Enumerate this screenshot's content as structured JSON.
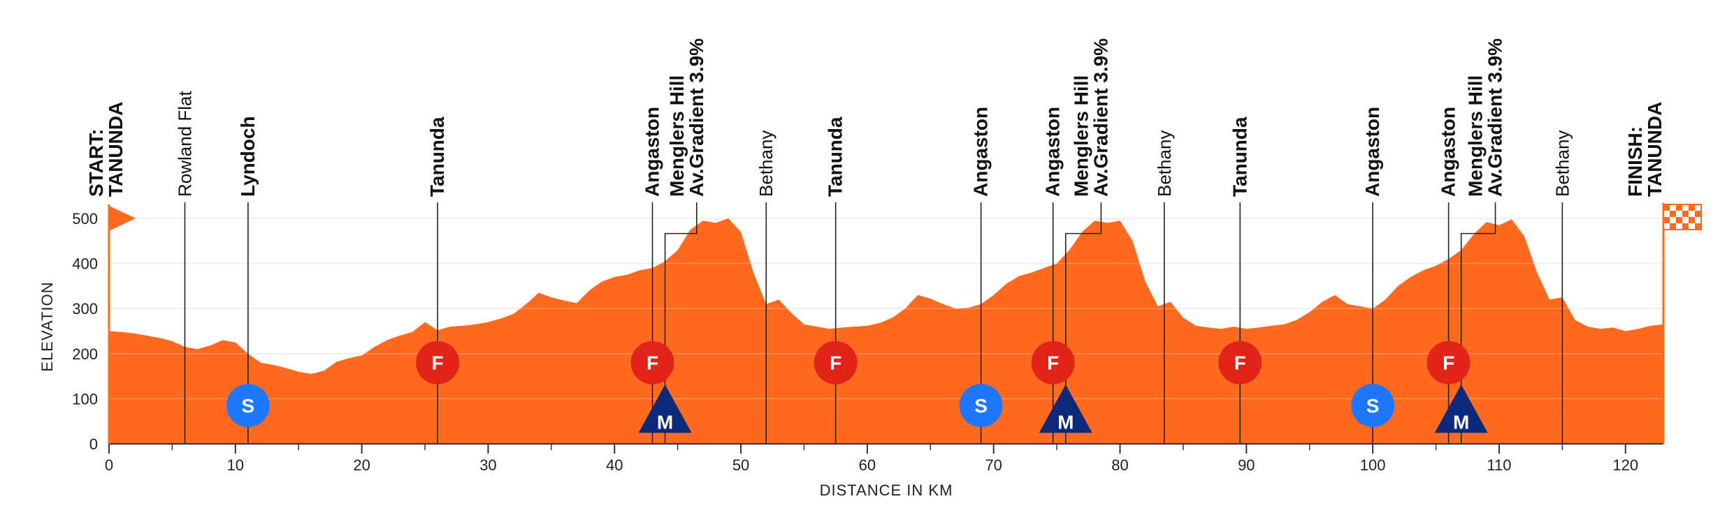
{
  "chart_data": {
    "type": "area",
    "xlabel": "DISTANCE IN KM",
    "ylabel": "ELEVATION",
    "xlim": [
      0,
      123
    ],
    "ylim": [
      0,
      520
    ],
    "xticks": [
      0,
      10,
      20,
      30,
      40,
      50,
      60,
      70,
      80,
      90,
      100,
      110,
      120
    ],
    "yticks": [
      0,
      100,
      200,
      300,
      400,
      500
    ],
    "grid": true,
    "colors": {
      "profile": "#ff6a1f",
      "sprint": "#1e78ff",
      "feed": "#e2231a",
      "mountain": "#0d2a7a"
    },
    "series": [
      {
        "x": [
          0,
          1,
          2,
          3,
          4,
          5,
          6,
          7,
          8,
          9,
          10,
          11,
          12,
          13,
          14,
          15,
          16,
          17,
          18,
          19,
          20,
          21,
          22,
          23,
          24,
          25,
          26,
          27,
          28,
          29,
          30,
          31,
          32,
          33,
          34,
          35,
          36,
          37,
          38,
          39,
          40,
          41,
          42,
          43,
          44,
          45,
          46,
          47,
          48,
          49,
          50,
          51,
          52,
          53,
          54,
          55,
          56,
          57,
          58,
          59,
          60,
          61,
          62,
          63,
          64,
          65,
          66,
          67,
          68,
          69,
          70,
          71,
          72,
          73,
          74,
          75,
          76,
          77,
          78,
          79,
          80,
          81,
          82,
          83,
          84,
          85,
          86,
          87,
          88,
          89,
          90,
          91,
          92,
          93,
          94,
          95,
          96,
          97,
          98,
          99,
          100,
          101,
          102,
          103,
          104,
          105,
          106,
          107,
          108,
          109,
          110,
          111,
          112,
          113,
          114,
          115,
          116,
          117,
          118,
          119,
          120,
          121,
          122,
          123
        ],
        "y": [
          250,
          248,
          245,
          240,
          235,
          228,
          215,
          210,
          218,
          230,
          225,
          200,
          180,
          175,
          168,
          160,
          155,
          162,
          182,
          190,
          196,
          215,
          230,
          240,
          248,
          270,
          252,
          260,
          262,
          265,
          270,
          278,
          288,
          310,
          335,
          325,
          318,
          312,
          340,
          360,
          370,
          375,
          385,
          390,
          405,
          430,
          475,
          495,
          490,
          500,
          470,
          380,
          310,
          320,
          290,
          265,
          260,
          255,
          258,
          260,
          262,
          268,
          280,
          300,
          330,
          322,
          310,
          300,
          302,
          310,
          330,
          355,
          372,
          380,
          390,
          400,
          430,
          470,
          495,
          490,
          495,
          450,
          360,
          305,
          315,
          280,
          262,
          258,
          255,
          260,
          255,
          258,
          262,
          265,
          275,
          292,
          315,
          330,
          310,
          305,
          300,
          320,
          350,
          370,
          385,
          395,
          410,
          430,
          465,
          492,
          485,
          498,
          460,
          380,
          320,
          325,
          275,
          260,
          255,
          258,
          250,
          255,
          262,
          265
        ]
      }
    ],
    "locations": [
      {
        "km": 0,
        "lines": [
          "START:",
          "TANUNDA"
        ],
        "bold": true,
        "line": false
      },
      {
        "km": 6,
        "lines": [
          "Rowland Flat"
        ],
        "bold": false,
        "line": true
      },
      {
        "km": 11,
        "lines": [
          "Lyndoch"
        ],
        "bold": true,
        "line": true
      },
      {
        "km": 26,
        "lines": [
          "Tanunda"
        ],
        "bold": true,
        "line": true
      },
      {
        "km": 43,
        "lines": [
          "Angaston"
        ],
        "bold": true,
        "line": true
      },
      {
        "km": 46.5,
        "lines": [
          "Menglers Hill",
          "Av.Gradient 3.9%"
        ],
        "bold": true,
        "line": true,
        "anchor_km": 44,
        "anchor_elev": 420
      },
      {
        "km": 52,
        "lines": [
          "Bethany"
        ],
        "bold": false,
        "line": true
      },
      {
        "km": 57.5,
        "lines": [
          "Tanunda"
        ],
        "bold": true,
        "line": true
      },
      {
        "km": 69,
        "lines": [
          "Angaston"
        ],
        "bold": true,
        "line": true
      },
      {
        "km": 74.7,
        "lines": [
          "Angaston"
        ],
        "bold": true,
        "line": true
      },
      {
        "km": 78.5,
        "lines": [
          "Menglers Hill",
          "Av.Gradient 3.9%"
        ],
        "bold": true,
        "line": true,
        "anchor_km": 75.7,
        "anchor_elev": 420
      },
      {
        "km": 83.5,
        "lines": [
          "Bethany"
        ],
        "bold": false,
        "line": true
      },
      {
        "km": 89.5,
        "lines": [
          "Tanunda"
        ],
        "bold": true,
        "line": true
      },
      {
        "km": 100,
        "lines": [
          "Angaston"
        ],
        "bold": true,
        "line": true
      },
      {
        "km": 106,
        "lines": [
          "Angaston"
        ],
        "bold": true,
        "line": true
      },
      {
        "km": 109.7,
        "lines": [
          "Menglers Hill",
          "Av.Gradient 3.9%"
        ],
        "bold": true,
        "line": true,
        "anchor_km": 107,
        "anchor_elev": 420
      },
      {
        "km": 115,
        "lines": [
          "Bethany"
        ],
        "bold": false,
        "line": true
      },
      {
        "km": 123,
        "lines": [
          "FINISH:",
          "TANUNDA"
        ],
        "bold": true,
        "line": false
      }
    ],
    "markers": [
      {
        "type": "sprint",
        "label": "S",
        "km": 11,
        "elev": 85
      },
      {
        "type": "sprint",
        "label": "S",
        "km": 69,
        "elev": 85
      },
      {
        "type": "sprint",
        "label": "S",
        "km": 100,
        "elev": 85
      },
      {
        "type": "feed",
        "label": "F",
        "km": 26,
        "elev": 180
      },
      {
        "type": "feed",
        "label": "F",
        "km": 43,
        "elev": 180
      },
      {
        "type": "feed",
        "label": "F",
        "km": 57.5,
        "elev": 180
      },
      {
        "type": "feed",
        "label": "F",
        "km": 74.7,
        "elev": 180
      },
      {
        "type": "feed",
        "label": "F",
        "km": 89.5,
        "elev": 180
      },
      {
        "type": "feed",
        "label": "F",
        "km": 106,
        "elev": 180
      },
      {
        "type": "mountain",
        "label": "M",
        "km": 44,
        "elev": 55
      },
      {
        "type": "mountain",
        "label": "M",
        "km": 75.7,
        "elev": 55
      },
      {
        "type": "mountain",
        "label": "M",
        "km": 107,
        "elev": 55
      }
    ]
  }
}
